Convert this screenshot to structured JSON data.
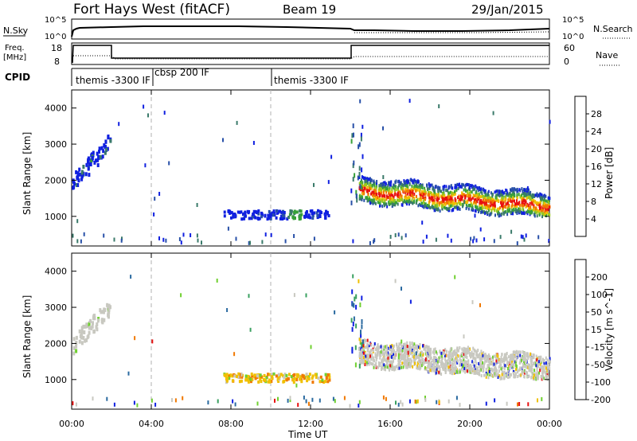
{
  "header": {
    "site": "Fort Hays West (fitACF)",
    "beam": "Beam 19",
    "date": "29/Jan/2015"
  },
  "strip_labels": {
    "nsky": "N.Sky",
    "nsky_top": "10^5",
    "nsky_bottom": "10^0",
    "nsearch": "N.Search",
    "nsearch_top": "10^5",
    "nsearch_bottom": "10^0",
    "freq": "Freq.",
    "freq_unit": "[MHz]",
    "freq_top": "18",
    "freq_bottom": "8",
    "nave": "Nave",
    "nave_top": "60",
    "nave_bottom": "0",
    "cpid": "CPID"
  },
  "cpid_segments": [
    {
      "label": "themis -3300 IF",
      "start_hour": 0.0
    },
    {
      "label": "cbsp 200 IF",
      "start_hour": 4.0
    },
    {
      "label": "themis -3300 IF",
      "start_hour": 10.0
    }
  ],
  "chart_data": [
    {
      "type": "heatmap",
      "name": "power",
      "ylabel": "Slant Range [km]",
      "xlabel": "Time UT",
      "x_tick_labels": [
        "00:00",
        "04:00",
        "08:00",
        "12:00",
        "16:00",
        "20:00",
        "00:00"
      ],
      "x_ticks_hours": [
        0,
        4,
        8,
        12,
        16,
        20,
        24
      ],
      "xlim": [
        0,
        24
      ],
      "y_tick_labels": [
        "1000",
        "2000",
        "3000",
        "4000"
      ],
      "y_ticks_km": [
        1000,
        2000,
        3000,
        4000
      ],
      "ylim": [
        180,
        4500
      ],
      "colorbar": {
        "label": "Power [dB]",
        "tick_labels": [
          "4",
          "8",
          "12",
          "16",
          "20",
          "24",
          "28"
        ],
        "colors": [
          "#1020e0",
          "#2850a8",
          "#3a7a6a",
          "#38a038",
          "#98c820",
          "#f0c000",
          "#f07800",
          "#e81010"
        ],
        "range": [
          0,
          30
        ]
      },
      "features": [
        {
          "t0": 0.0,
          "t1": 1.9,
          "r0": 1700,
          "r1": 3000,
          "desc": "slanted echo band"
        },
        {
          "t0": 7.6,
          "t1": 12.9,
          "r0": 870,
          "r1": 1130,
          "desc": "ground scatter band"
        },
        {
          "t0": 14.4,
          "t1": 24.0,
          "r0": 1000,
          "r1": 2800,
          "desc": "strong backscatter region"
        }
      ]
    },
    {
      "type": "heatmap",
      "name": "velocity",
      "ylabel": "Slant Range [km]",
      "xlabel": "Time UT",
      "x_tick_labels": [
        "00:00",
        "04:00",
        "08:00",
        "12:00",
        "16:00",
        "20:00",
        "00:00"
      ],
      "x_ticks_hours": [
        0,
        4,
        8,
        12,
        16,
        20,
        24
      ],
      "xlim": [
        0,
        24
      ],
      "y_tick_labels": [
        "1000",
        "2000",
        "3000",
        "4000"
      ],
      "y_ticks_km": [
        1000,
        2000,
        3000,
        4000
      ],
      "ylim": [
        180,
        4500
      ],
      "colorbar": {
        "label": "Velocity [m s^-1]",
        "tick_labels": [
          "200",
          "100",
          "50",
          "15",
          "-15",
          "-50",
          "-100",
          "-200"
        ],
        "colors": [
          "#1020e0",
          "#2a6aa0",
          "#3aa060",
          "#70d030",
          "#c8c8c0",
          "#f0c000",
          "#f07800",
          "#e81010"
        ],
        "range": [
          -250,
          250
        ]
      },
      "features": [
        {
          "t0": 0.0,
          "t1": 1.9,
          "r0": 1700,
          "r1": 3000,
          "desc": "ground scatter (grey)"
        },
        {
          "t0": 7.6,
          "t1": 12.9,
          "r0": 870,
          "r1": 1130,
          "desc": "negative velocity band"
        },
        {
          "t0": 14.4,
          "t1": 24.0,
          "r0": 1000,
          "r1": 2800,
          "desc": "mostly ground scatter"
        }
      ]
    }
  ],
  "colors": {
    "grey_scatter": "#c8c8c0",
    "axis": "#000000",
    "dashed_line": "#b0b0b0"
  }
}
